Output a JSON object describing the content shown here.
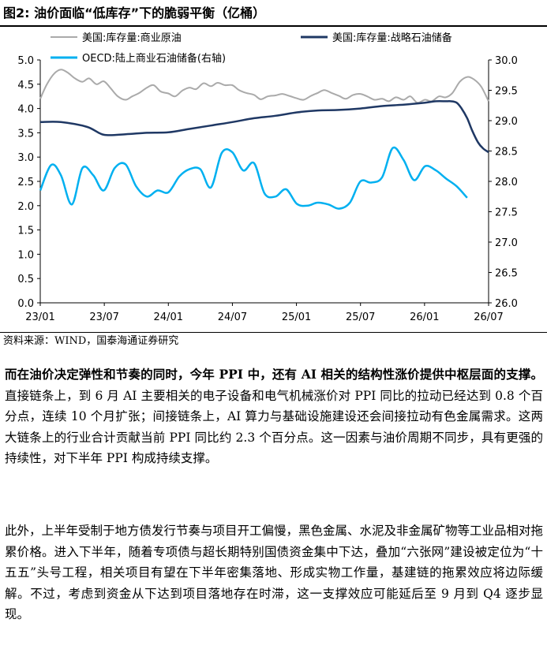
{
  "figure": {
    "title": "图2:  油价面临“低库存”下的脆弱平衡（亿桶）",
    "source": "资料来源：WIND，国泰海通证券研究"
  },
  "chart_data": {
    "type": "line",
    "title": "图2:  油价面临“低库存”下的脆弱平衡（亿桶）",
    "x_ticks": [
      "23/01",
      "23/07",
      "24/01",
      "24/07",
      "25/01",
      "25/07",
      "26/01",
      "26/07"
    ],
    "x_range": [
      "2023-01",
      "2026-07"
    ],
    "y_left": {
      "range": [
        0,
        5.0
      ],
      "ticks": [
        "0.0",
        "0.5",
        "1.0",
        "1.5",
        "2.0",
        "2.5",
        "3.0",
        "3.5",
        "4.0",
        "4.5",
        "5.0"
      ]
    },
    "y_right": {
      "range": [
        26.0,
        30.0
      ],
      "ticks": [
        "26.0",
        "26.5",
        "27.0",
        "27.5",
        "28.0",
        "28.5",
        "29.0",
        "29.5",
        "30.0"
      ]
    },
    "grid": false,
    "legend_position": "top",
    "series": [
      {
        "name": "美国:库存量:商业原油",
        "axis": "left",
        "color": "#aaaaaa",
        "x": [
          "2023-01-01",
          "2023-01-20",
          "2023-02-10",
          "2023-03-01",
          "2023-03-20",
          "2023-04-10",
          "2023-05-01",
          "2023-05-20",
          "2023-06-10",
          "2023-07-01",
          "2023-07-20",
          "2023-08-10",
          "2023-09-01",
          "2023-09-20",
          "2023-10-10",
          "2023-11-01",
          "2023-11-20",
          "2023-12-10",
          "2024-01-01",
          "2024-01-20",
          "2024-02-10",
          "2024-03-01",
          "2024-03-20",
          "2024-04-10",
          "2024-05-01",
          "2024-05-20",
          "2024-06-10",
          "2024-07-01",
          "2024-07-20",
          "2024-08-10",
          "2024-09-01",
          "2024-09-20",
          "2024-10-10",
          "2024-11-01",
          "2024-11-20",
          "2024-12-10",
          "2025-01-01",
          "2025-01-20",
          "2025-02-10",
          "2025-03-01",
          "2025-03-20",
          "2025-04-10",
          "2025-05-01",
          "2025-05-20",
          "2025-06-10",
          "2025-07-01",
          "2025-07-20",
          "2025-08-10",
          "2025-09-01",
          "2025-09-20",
          "2025-10-10",
          "2025-11-01",
          "2025-11-20",
          "2025-12-10",
          "2026-01-01",
          "2026-01-20",
          "2026-02-10",
          "2026-03-01",
          "2026-03-20",
          "2026-04-10",
          "2026-05-01",
          "2026-05-20",
          "2026-06-10",
          "2026-07-01"
        ],
        "values": [
          4.2,
          4.5,
          4.72,
          4.8,
          4.74,
          4.62,
          4.55,
          4.62,
          4.5,
          4.56,
          4.42,
          4.25,
          4.18,
          4.25,
          4.32,
          4.43,
          4.48,
          4.35,
          4.31,
          4.25,
          4.37,
          4.43,
          4.4,
          4.52,
          4.46,
          4.53,
          4.48,
          4.48,
          4.38,
          4.32,
          4.28,
          4.19,
          4.25,
          4.27,
          4.3,
          4.26,
          4.21,
          4.18,
          4.26,
          4.32,
          4.38,
          4.32,
          4.26,
          4.2,
          4.28,
          4.3,
          4.25,
          4.18,
          4.2,
          4.15,
          4.23,
          4.18,
          4.25,
          4.12,
          4.18,
          4.15,
          4.25,
          4.23,
          4.32,
          4.55,
          4.65,
          4.6,
          4.45,
          4.15
        ]
      },
      {
        "name": "美国:库存量:战略石油储备",
        "axis": "left",
        "color": "#1f3864",
        "x": [
          "2023-01-01",
          "2023-03-01",
          "2023-05-15",
          "2023-07-01",
          "2023-09-01",
          "2023-11-01",
          "2024-01-01",
          "2024-03-01",
          "2024-05-01",
          "2024-07-01",
          "2024-09-01",
          "2024-11-01",
          "2025-01-01",
          "2025-03-01",
          "2025-05-01",
          "2025-07-01",
          "2025-09-01",
          "2025-11-01",
          "2026-01-01",
          "2026-02-01",
          "2026-03-01",
          "2026-03-15",
          "2026-04-01",
          "2026-04-15",
          "2026-05-01",
          "2026-05-15",
          "2026-06-01",
          "2026-06-15",
          "2026-07-01"
        ],
        "values": [
          3.72,
          3.72,
          3.62,
          3.46,
          3.47,
          3.5,
          3.51,
          3.58,
          3.65,
          3.72,
          3.8,
          3.85,
          3.92,
          3.96,
          3.97,
          4.0,
          4.05,
          4.08,
          4.12,
          4.15,
          4.15,
          4.15,
          4.12,
          4.0,
          3.8,
          3.55,
          3.3,
          3.18,
          3.1
        ]
      },
      {
        "name": "OECD:陆上商业石油储备(右轴)",
        "axis": "right",
        "color": "#00b0f0",
        "x": [
          "2023-01-01",
          "2023-02-01",
          "2023-03-01",
          "2023-04-01",
          "2023-05-01",
          "2023-06-01",
          "2023-07-01",
          "2023-08-01",
          "2023-09-01",
          "2023-10-01",
          "2023-11-01",
          "2023-12-01",
          "2024-01-01",
          "2024-02-01",
          "2024-03-01",
          "2024-04-01",
          "2024-05-01",
          "2024-06-01",
          "2024-07-01",
          "2024-08-01",
          "2024-09-01",
          "2024-10-01",
          "2024-11-01",
          "2024-12-01",
          "2025-01-01",
          "2025-02-01",
          "2025-03-01",
          "2025-04-01",
          "2025-05-01",
          "2025-06-01",
          "2025-07-01",
          "2025-08-01",
          "2025-09-01",
          "2025-10-01",
          "2025-11-01",
          "2025-12-01",
          "2026-01-01",
          "2026-02-01",
          "2026-03-01",
          "2026-04-01",
          "2026-05-01"
        ],
        "values": [
          27.85,
          28.27,
          28.1,
          27.62,
          28.22,
          28.1,
          27.85,
          28.22,
          28.28,
          27.92,
          27.75,
          27.85,
          27.82,
          28.08,
          28.2,
          28.2,
          27.9,
          28.47,
          28.48,
          28.18,
          28.3,
          27.8,
          27.75,
          27.87,
          27.63,
          27.6,
          27.65,
          27.62,
          27.55,
          27.65,
          28.0,
          27.98,
          28.07,
          28.55,
          28.35,
          28.02,
          28.25,
          28.18,
          28.05,
          27.92,
          27.73
        ]
      }
    ]
  },
  "text": {
    "p1_bold": "而在油价决定弹性和节奏的同时，今年 PPI 中，还有 AI 相关的结构性涨价提供中枢层面的支撑。",
    "p1_rest": "直接链条上，到 6 月 AI 主要相关的电子设备和电气机械涨价对 PPI 同比的拉动已经达到 0.8 个百分点，连续 10 个月扩张；间接链条上，AI 算力与基础设施建设还会间接拉动有色金属需求。这两大链条上的行业合计贡献当前 PPI 同比约 2.3 个百分点。这一因素与油价周期不同步，具有更强的持续性，对下半年 PPI 构成持续支撑。",
    "p2": "此外，上半年受制于地方债发行节奏与项目开工偏慢，黑色金属、水泥及非金属矿物等工业品相对拖累价格。进入下半年，随着专项债与超长期特别国债资金集中下达，叠加“六张网”建设被定位为“十五五”头号工程，相关项目有望在下半年密集落地、形成实物工作量，基建链的拖累效应将边际缓解。不过，考虑到资金从下达到项目落地存在时滞，这一支撑效应可能延后至 9 月到 Q4 逐步显现。"
  }
}
